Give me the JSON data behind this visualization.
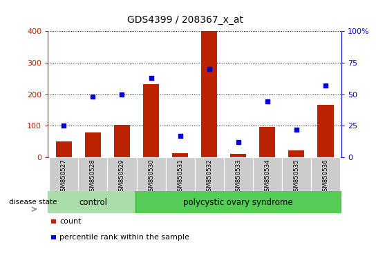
{
  "title": "GDS4399 / 208367_x_at",
  "samples": [
    "GSM850527",
    "GSM850528",
    "GSM850529",
    "GSM850530",
    "GSM850531",
    "GSM850532",
    "GSM850533",
    "GSM850534",
    "GSM850535",
    "GSM850536"
  ],
  "count_values": [
    50,
    78,
    102,
    232,
    12,
    400,
    10,
    95,
    22,
    167
  ],
  "percentile_values": [
    25,
    48,
    50,
    63,
    17,
    70,
    12,
    44,
    22,
    57
  ],
  "n_control": 3,
  "n_disease": 7,
  "bar_color": "#bb2200",
  "dot_color": "#0000cc",
  "left_ylim": [
    0,
    400
  ],
  "right_ylim": [
    0,
    100
  ],
  "left_yticks": [
    0,
    100,
    200,
    300,
    400
  ],
  "right_yticks": [
    0,
    25,
    50,
    75,
    100
  ],
  "right_yticklabels": [
    "0",
    "25",
    "50",
    "75",
    "100%"
  ],
  "control_color": "#aaddaa",
  "disease_color": "#55cc55",
  "disease_label": "polycystic ovary syndrome",
  "control_label": "control",
  "disease_state_label": "disease state",
  "legend_count_label": "count",
  "legend_percentile_label": "percentile rank within the sample",
  "sample_bg_color": "#cccccc",
  "title_fontsize": 10,
  "axis_fontsize": 8,
  "label_fontsize": 8,
  "legend_fontsize": 8
}
